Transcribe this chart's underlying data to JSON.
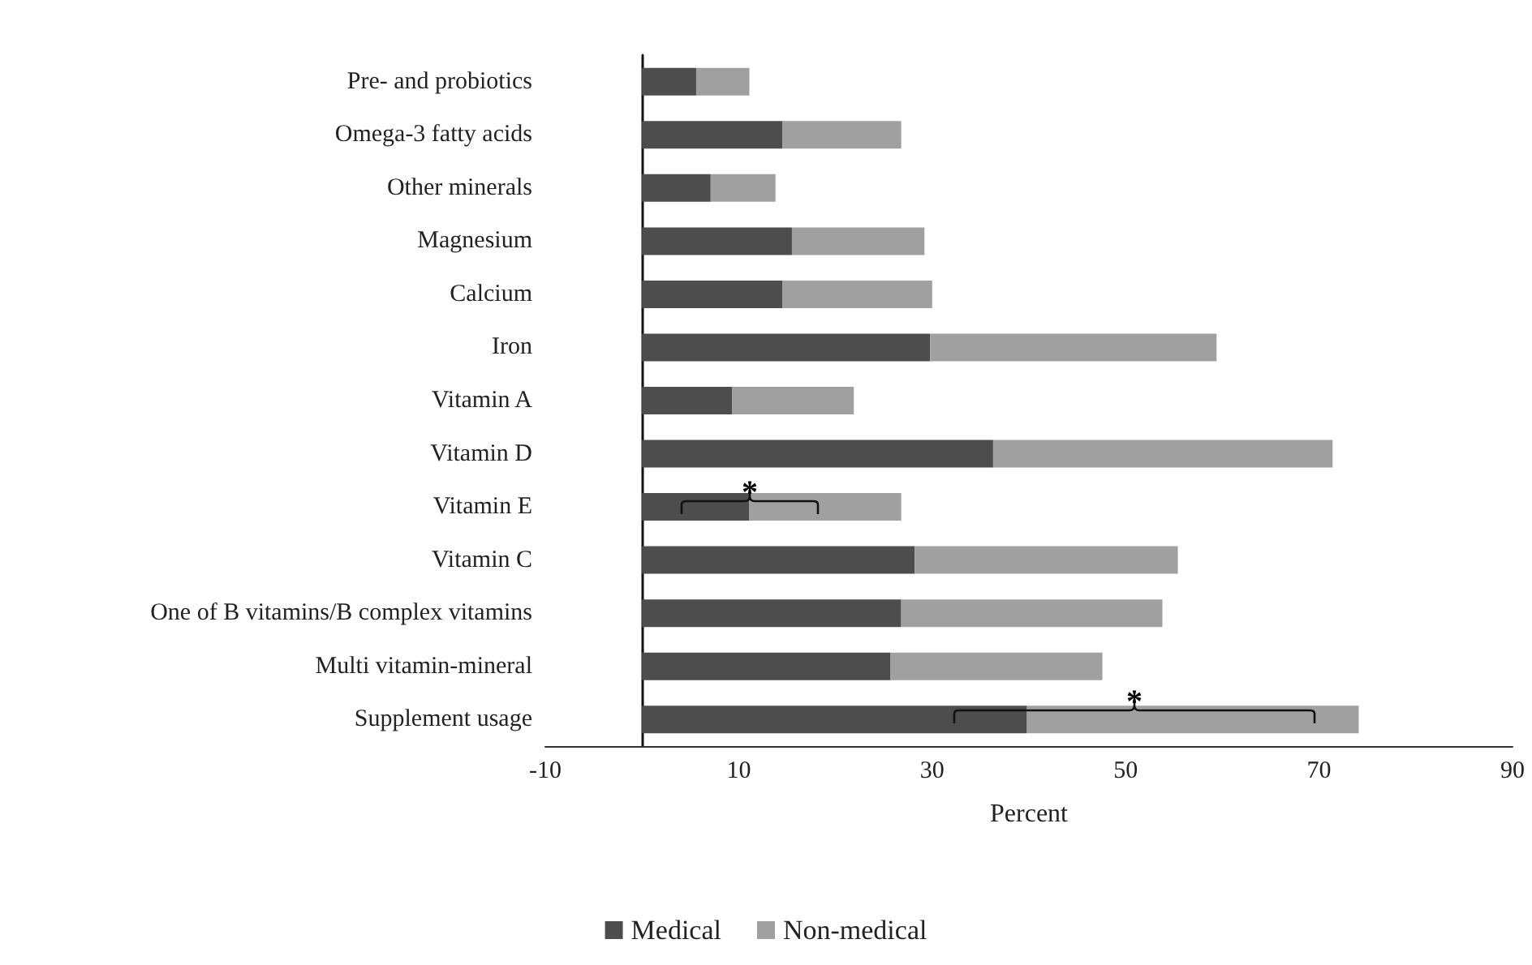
{
  "chart_data": {
    "type": "bar",
    "orientation": "horizontal",
    "stacked": true,
    "xlabel": "Percent",
    "categories": [
      "Pre- and probiotics",
      "Omega-3 fatty acids",
      "Other minerals",
      "Magnesium",
      "Calcium",
      "Iron",
      "Vitamin A",
      "Vitamin D",
      "Vitamin E",
      "Vitamin C",
      "One of B vitamins/B complex vitamins",
      "Multi vitamin-mineral",
      "Supplement usage"
    ],
    "series": [
      {
        "name": "Medical",
        "color": "#4d4d4d",
        "values": [
          5.6,
          14.5,
          7.1,
          15.5,
          14.5,
          29.8,
          9.3,
          36.3,
          11.1,
          28.2,
          26.8,
          25.7,
          39.8
        ]
      },
      {
        "name": "Non-medical",
        "color": "#a0a0a0",
        "values": [
          5.5,
          12.3,
          6.7,
          13.7,
          15.5,
          29.6,
          12.6,
          35.1,
          15.7,
          27.2,
          27.0,
          21.9,
          34.3
        ]
      }
    ],
    "xlim": [
      -10,
      90
    ],
    "xticks": [
      -10,
      10,
      30,
      50,
      70,
      90
    ],
    "annotations": [
      "*",
      "*"
    ],
    "grid": false,
    "legend": "bottom"
  }
}
